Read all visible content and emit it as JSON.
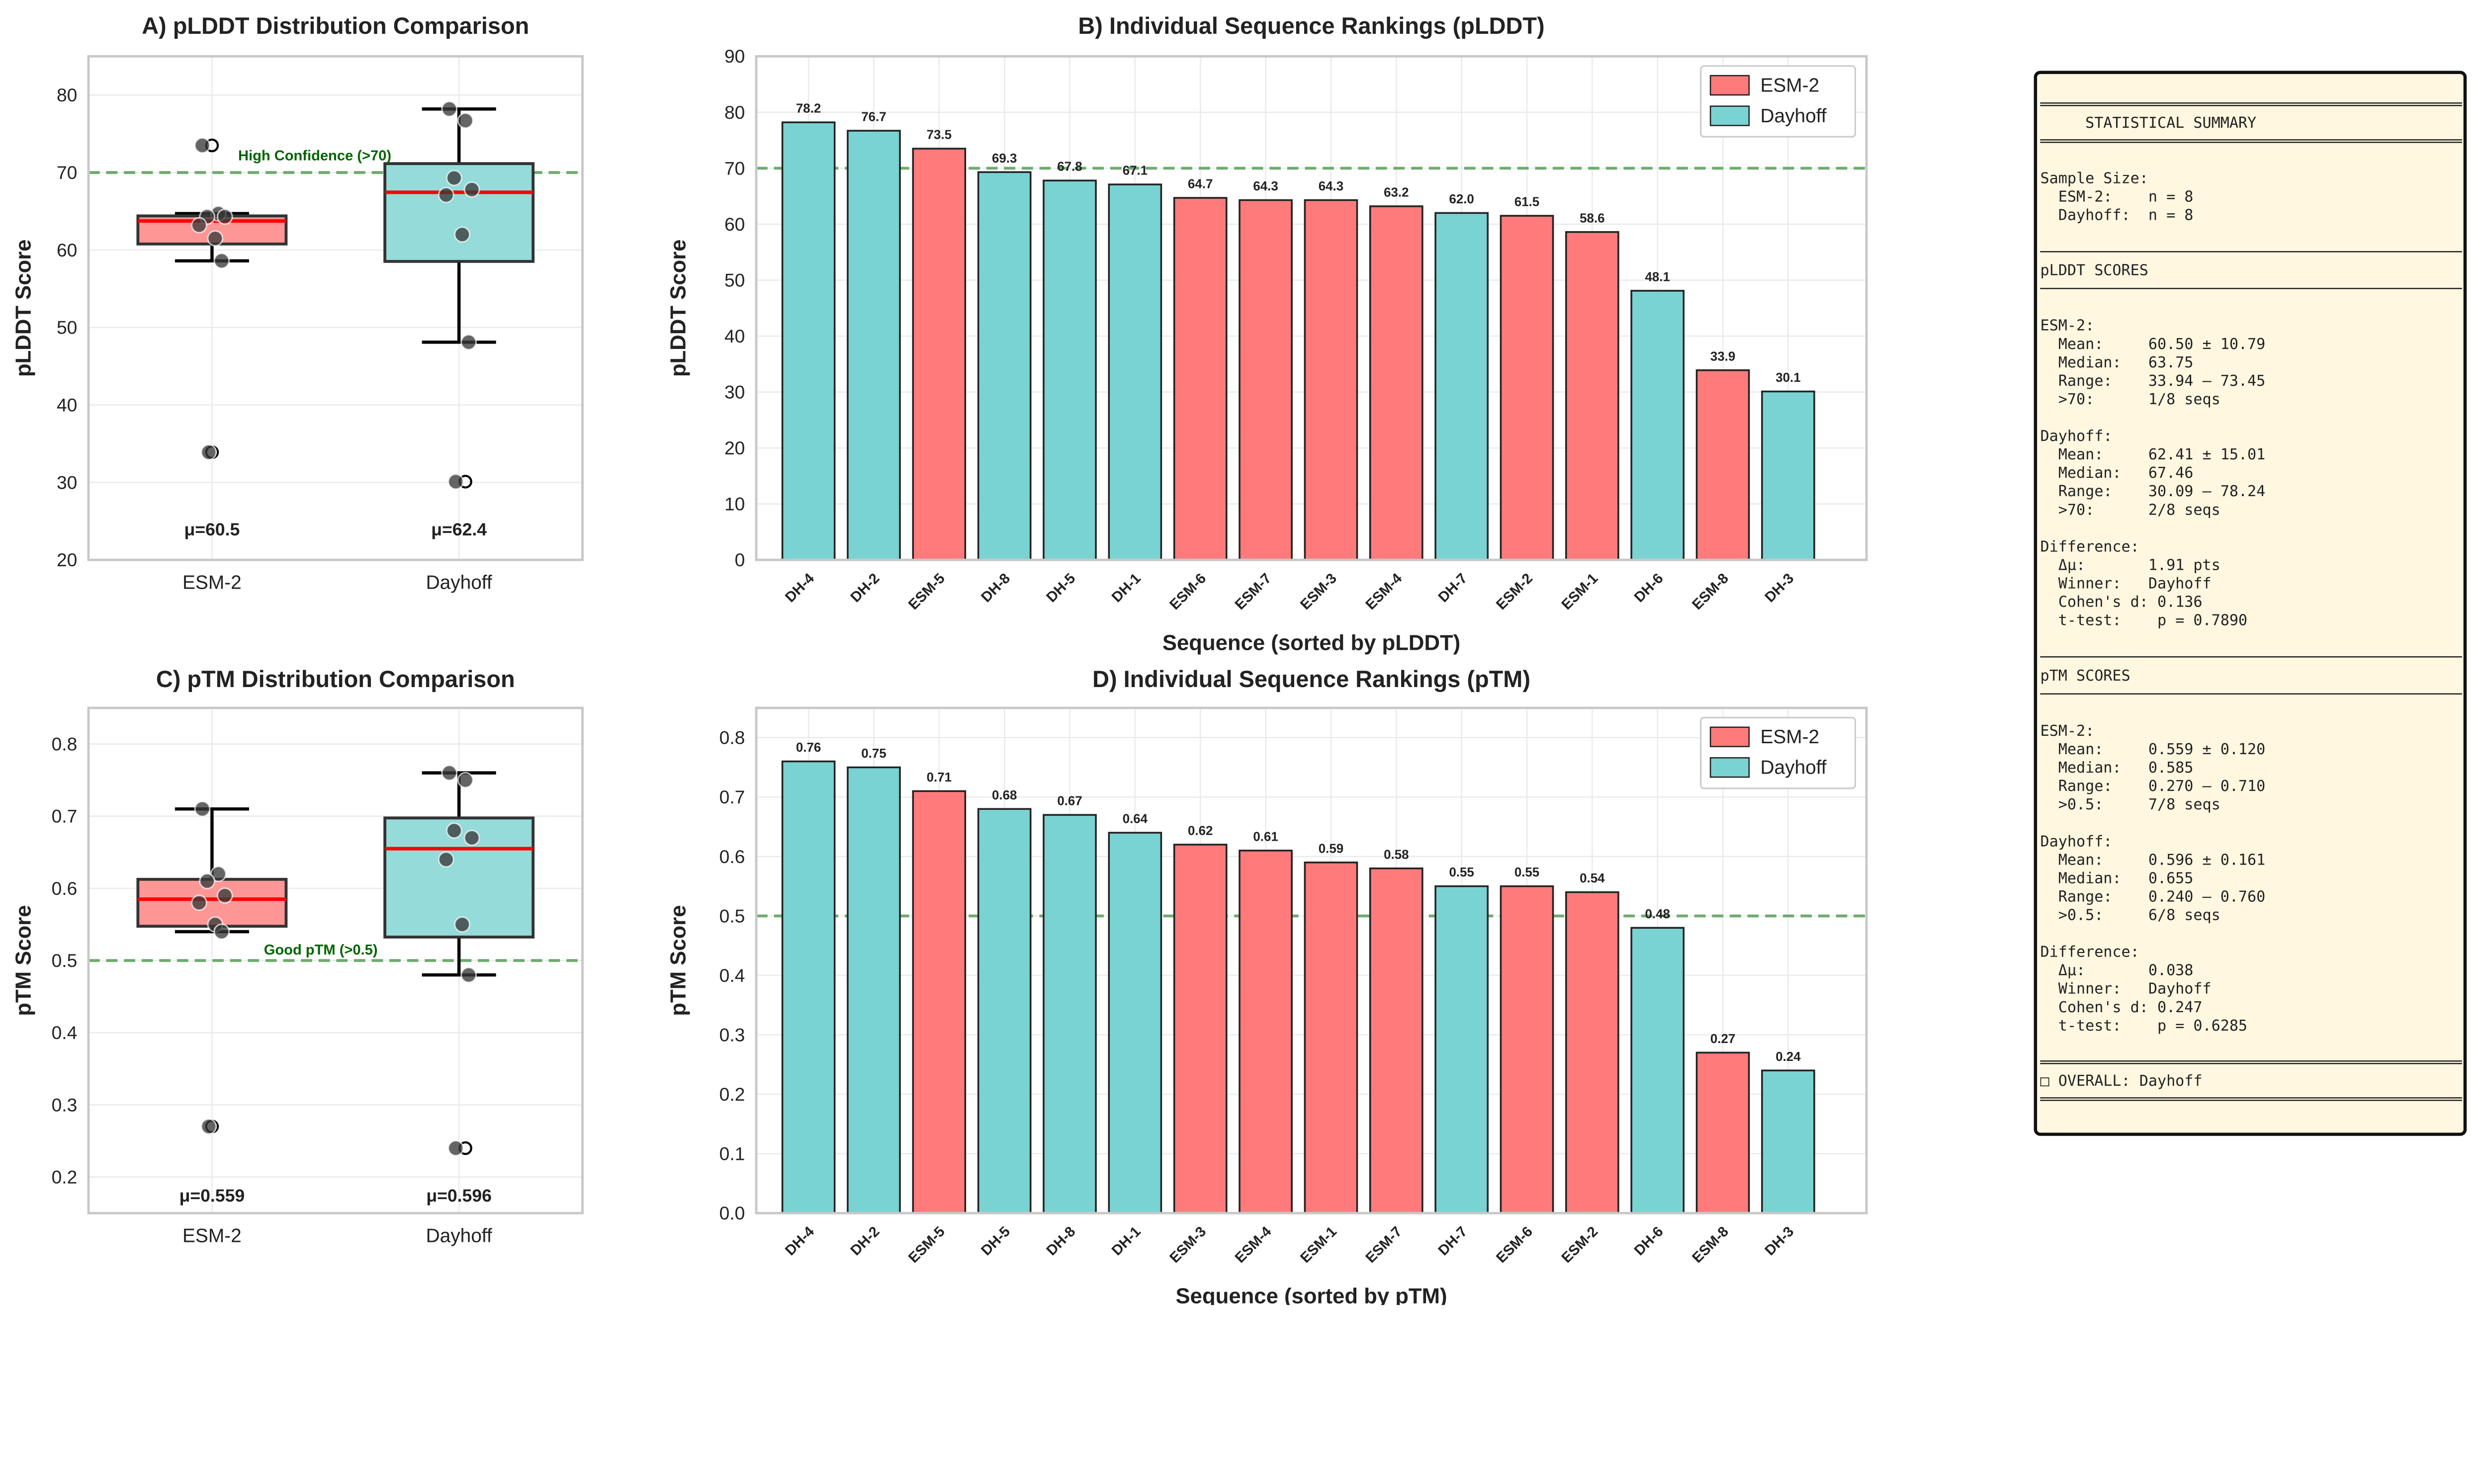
{
  "colors": {
    "ESM-2": "#ff7b7b",
    "Dayhoff": "#7ad3d3",
    "box_esm": "#ff9696",
    "box_dh": "#94dbd9",
    "median": "#ff0000",
    "threshold": "#4e9a4e",
    "threshold_text": "#006400",
    "summary_bg": "#fff7e0"
  },
  "chart_data": [
    {
      "id": "A",
      "type": "box",
      "title": "A) pLDDT Distribution Comparison",
      "ylabel": "pLDDT Score",
      "ylim": [
        20,
        85
      ],
      "yticks": [
        20,
        30,
        40,
        50,
        60,
        70,
        80
      ],
      "grid": true,
      "categories": [
        "ESM-2",
        "Dayhoff"
      ],
      "groups": {
        "ESM-2": [
          73.5,
          64.7,
          64.3,
          64.3,
          63.2,
          61.5,
          58.6,
          33.9
        ],
        "Dayhoff": [
          78.2,
          76.7,
          69.3,
          67.8,
          67.1,
          62.0,
          48.1,
          30.1
        ]
      },
      "mean_labels": [
        "μ=60.5",
        "μ=62.4"
      ],
      "mean_label_y": 24,
      "threshold": 70,
      "threshold_label": "High Confidence (>70)",
      "threshold_label_y": 72.2
    },
    {
      "id": "B",
      "type": "bar",
      "title": "B) Individual Sequence Rankings (pLDDT)",
      "xlabel": "Sequence (sorted by pLDDT)",
      "ylabel": "pLDDT Score",
      "ylim": [
        0,
        90
      ],
      "yticks": [
        0,
        10,
        20,
        30,
        40,
        50,
        60,
        70,
        80,
        90
      ],
      "grid": true,
      "legend": "top-right",
      "legend_entries": [
        "ESM-2",
        "Dayhoff"
      ],
      "categories": [
        "DH-4",
        "DH-2",
        "ESM-5",
        "DH-8",
        "DH-5",
        "DH-1",
        "ESM-6",
        "ESM-7",
        "ESM-3",
        "ESM-4",
        "DH-7",
        "ESM-2",
        "ESM-1",
        "DH-6",
        "ESM-8",
        "DH-3"
      ],
      "values": [
        78.2,
        76.7,
        73.5,
        69.3,
        67.8,
        67.1,
        64.7,
        64.3,
        64.3,
        63.2,
        62.0,
        61.5,
        58.6,
        48.1,
        33.9,
        30.1
      ],
      "labels": [
        "78.2",
        "76.7",
        "73.5",
        "69.3",
        "67.8",
        "67.1",
        "64.7",
        "64.3",
        "64.3",
        "63.2",
        "62.0",
        "61.5",
        "58.6",
        "48.1",
        "33.9",
        "30.1"
      ],
      "threshold": 70
    },
    {
      "id": "C",
      "type": "box",
      "title": "C) pTM Distribution Comparison",
      "ylabel": "pTM Score",
      "ylim": [
        0.15,
        0.85
      ],
      "yticks": [
        0.2,
        0.3,
        0.4,
        0.5,
        0.6,
        0.7,
        0.8
      ],
      "grid": true,
      "categories": [
        "ESM-2",
        "Dayhoff"
      ],
      "groups": {
        "ESM-2": [
          0.71,
          0.62,
          0.61,
          0.59,
          0.58,
          0.55,
          0.54,
          0.27
        ],
        "Dayhoff": [
          0.76,
          0.75,
          0.68,
          0.67,
          0.64,
          0.55,
          0.48,
          0.24
        ]
      },
      "mean_labels": [
        "μ=0.559",
        "μ=0.596"
      ],
      "mean_label_y": 0.175,
      "threshold": 0.5,
      "threshold_label": "Good pTM (>0.5)",
      "threshold_label_y": 0.515
    },
    {
      "id": "D",
      "type": "bar",
      "title": "D) Individual Sequence Rankings (pTM)",
      "xlabel": "Sequence (sorted by pTM)",
      "ylabel": "pTM Score",
      "ylim": [
        0,
        0.85
      ],
      "yticks": [
        0.0,
        0.1,
        0.2,
        0.3,
        0.4,
        0.5,
        0.6,
        0.7,
        0.8
      ],
      "grid": true,
      "legend": "top-right",
      "legend_entries": [
        "ESM-2",
        "Dayhoff"
      ],
      "categories": [
        "DH-4",
        "DH-2",
        "ESM-5",
        "DH-5",
        "DH-8",
        "DH-1",
        "ESM-3",
        "ESM-4",
        "ESM-1",
        "ESM-7",
        "DH-7",
        "ESM-6",
        "ESM-2",
        "DH-6",
        "ESM-8",
        "DH-3"
      ],
      "values": [
        0.76,
        0.75,
        0.71,
        0.68,
        0.67,
        0.64,
        0.62,
        0.61,
        0.59,
        0.58,
        0.55,
        0.55,
        0.54,
        0.48,
        0.27,
        0.24
      ],
      "labels": [
        "0.76",
        "0.75",
        "0.71",
        "0.68",
        "0.67",
        "0.64",
        "0.62",
        "0.61",
        "0.59",
        "0.58",
        "0.55",
        "0.55",
        "0.54",
        "0.48",
        "0.27",
        "0.24"
      ],
      "threshold": 0.5
    }
  ],
  "summary": {
    "lines": [
      "══════════════════════════════════════════════",
      "     STATISTICAL SUMMARY",
      "══════════════════════════════════════════════",
      "",
      "Sample Size:",
      "  ESM-2:    n = 8",
      "  Dayhoff:  n = 8",
      "",
      "──────────────────────────────────────────────",
      "pLDDT SCORES",
      "──────────────────────────────────────────────",
      "",
      "ESM-2:",
      "  Mean:     60.50 ± 10.79",
      "  Median:   63.75",
      "  Range:    33.94 – 73.45",
      "  >70:      1/8 seqs",
      "",
      "Dayhoff:",
      "  Mean:     62.41 ± 15.01",
      "  Median:   67.46",
      "  Range:    30.09 – 78.24",
      "  >70:      2/8 seqs",
      "",
      "Difference:",
      "  Δμ:       1.91 pts",
      "  Winner:   Dayhoff",
      "  Cohen's d: 0.136",
      "  t-test:    p = 0.7890",
      "",
      "──────────────────────────────────────────────",
      "pTM SCORES",
      "──────────────────────────────────────────────",
      "",
      "ESM-2:",
      "  Mean:     0.559 ± 0.120",
      "  Median:   0.585",
      "  Range:    0.270 – 0.710",
      "  >0.5:     7/8 seqs",
      "",
      "Dayhoff:",
      "  Mean:     0.596 ± 0.161",
      "  Median:   0.655",
      "  Range:    0.240 – 0.760",
      "  >0.5:     6/8 seqs",
      "",
      "Difference:",
      "  Δμ:       0.038",
      "  Winner:   Dayhoff",
      "  Cohen's d: 0.247",
      "  t-test:    p = 0.6285",
      "",
      "══════════════════════════════════════════════",
      "□ OVERALL: Dayhoff",
      "══════════════════════════════════════════════"
    ]
  }
}
